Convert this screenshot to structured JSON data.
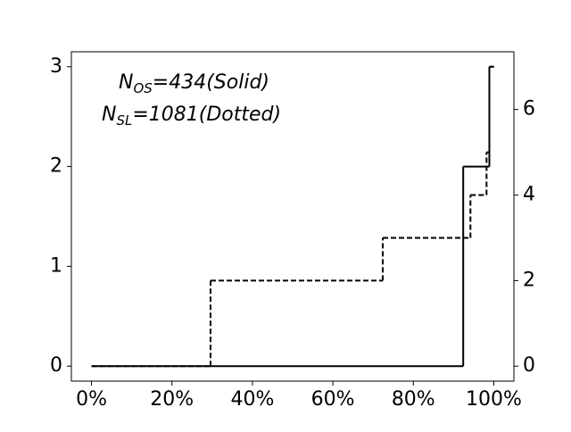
{
  "chart_data": {
    "type": "step",
    "annotations": [
      {
        "main": "N",
        "sub": "OS",
        "rest": "=434(Solid)"
      },
      {
        "main": "N",
        "sub": "SL",
        "rest": "=1081(Dotted)"
      }
    ],
    "xlim": [
      -5,
      105
    ],
    "xticks": [
      {
        "value": 0,
        "label": "0%"
      },
      {
        "value": 20,
        "label": "20%"
      },
      {
        "value": 40,
        "label": "40%"
      },
      {
        "value": 60,
        "label": "60%"
      },
      {
        "value": 80,
        "label": "80%"
      },
      {
        "value": 100,
        "label": "100%"
      }
    ],
    "ylim": [
      -0.15,
      3.15
    ],
    "yticks": [
      0,
      1,
      2,
      3
    ],
    "y2lim": [
      -0.35,
      7.35
    ],
    "y2ticks": [
      0,
      2,
      4,
      6
    ],
    "series": [
      {
        "style": "solid",
        "color": "#000000",
        "x": [
          0,
          92.4,
          98.9,
          100
        ],
        "values": [
          0,
          2,
          3,
          3
        ]
      },
      {
        "style": "dashed",
        "color": "#000000",
        "axis": "y2",
        "x": [
          0,
          29.6,
          72.4,
          94.2,
          98.2,
          98.9,
          100
        ],
        "values": [
          0,
          2,
          3,
          4,
          5,
          7,
          7
        ]
      }
    ]
  }
}
